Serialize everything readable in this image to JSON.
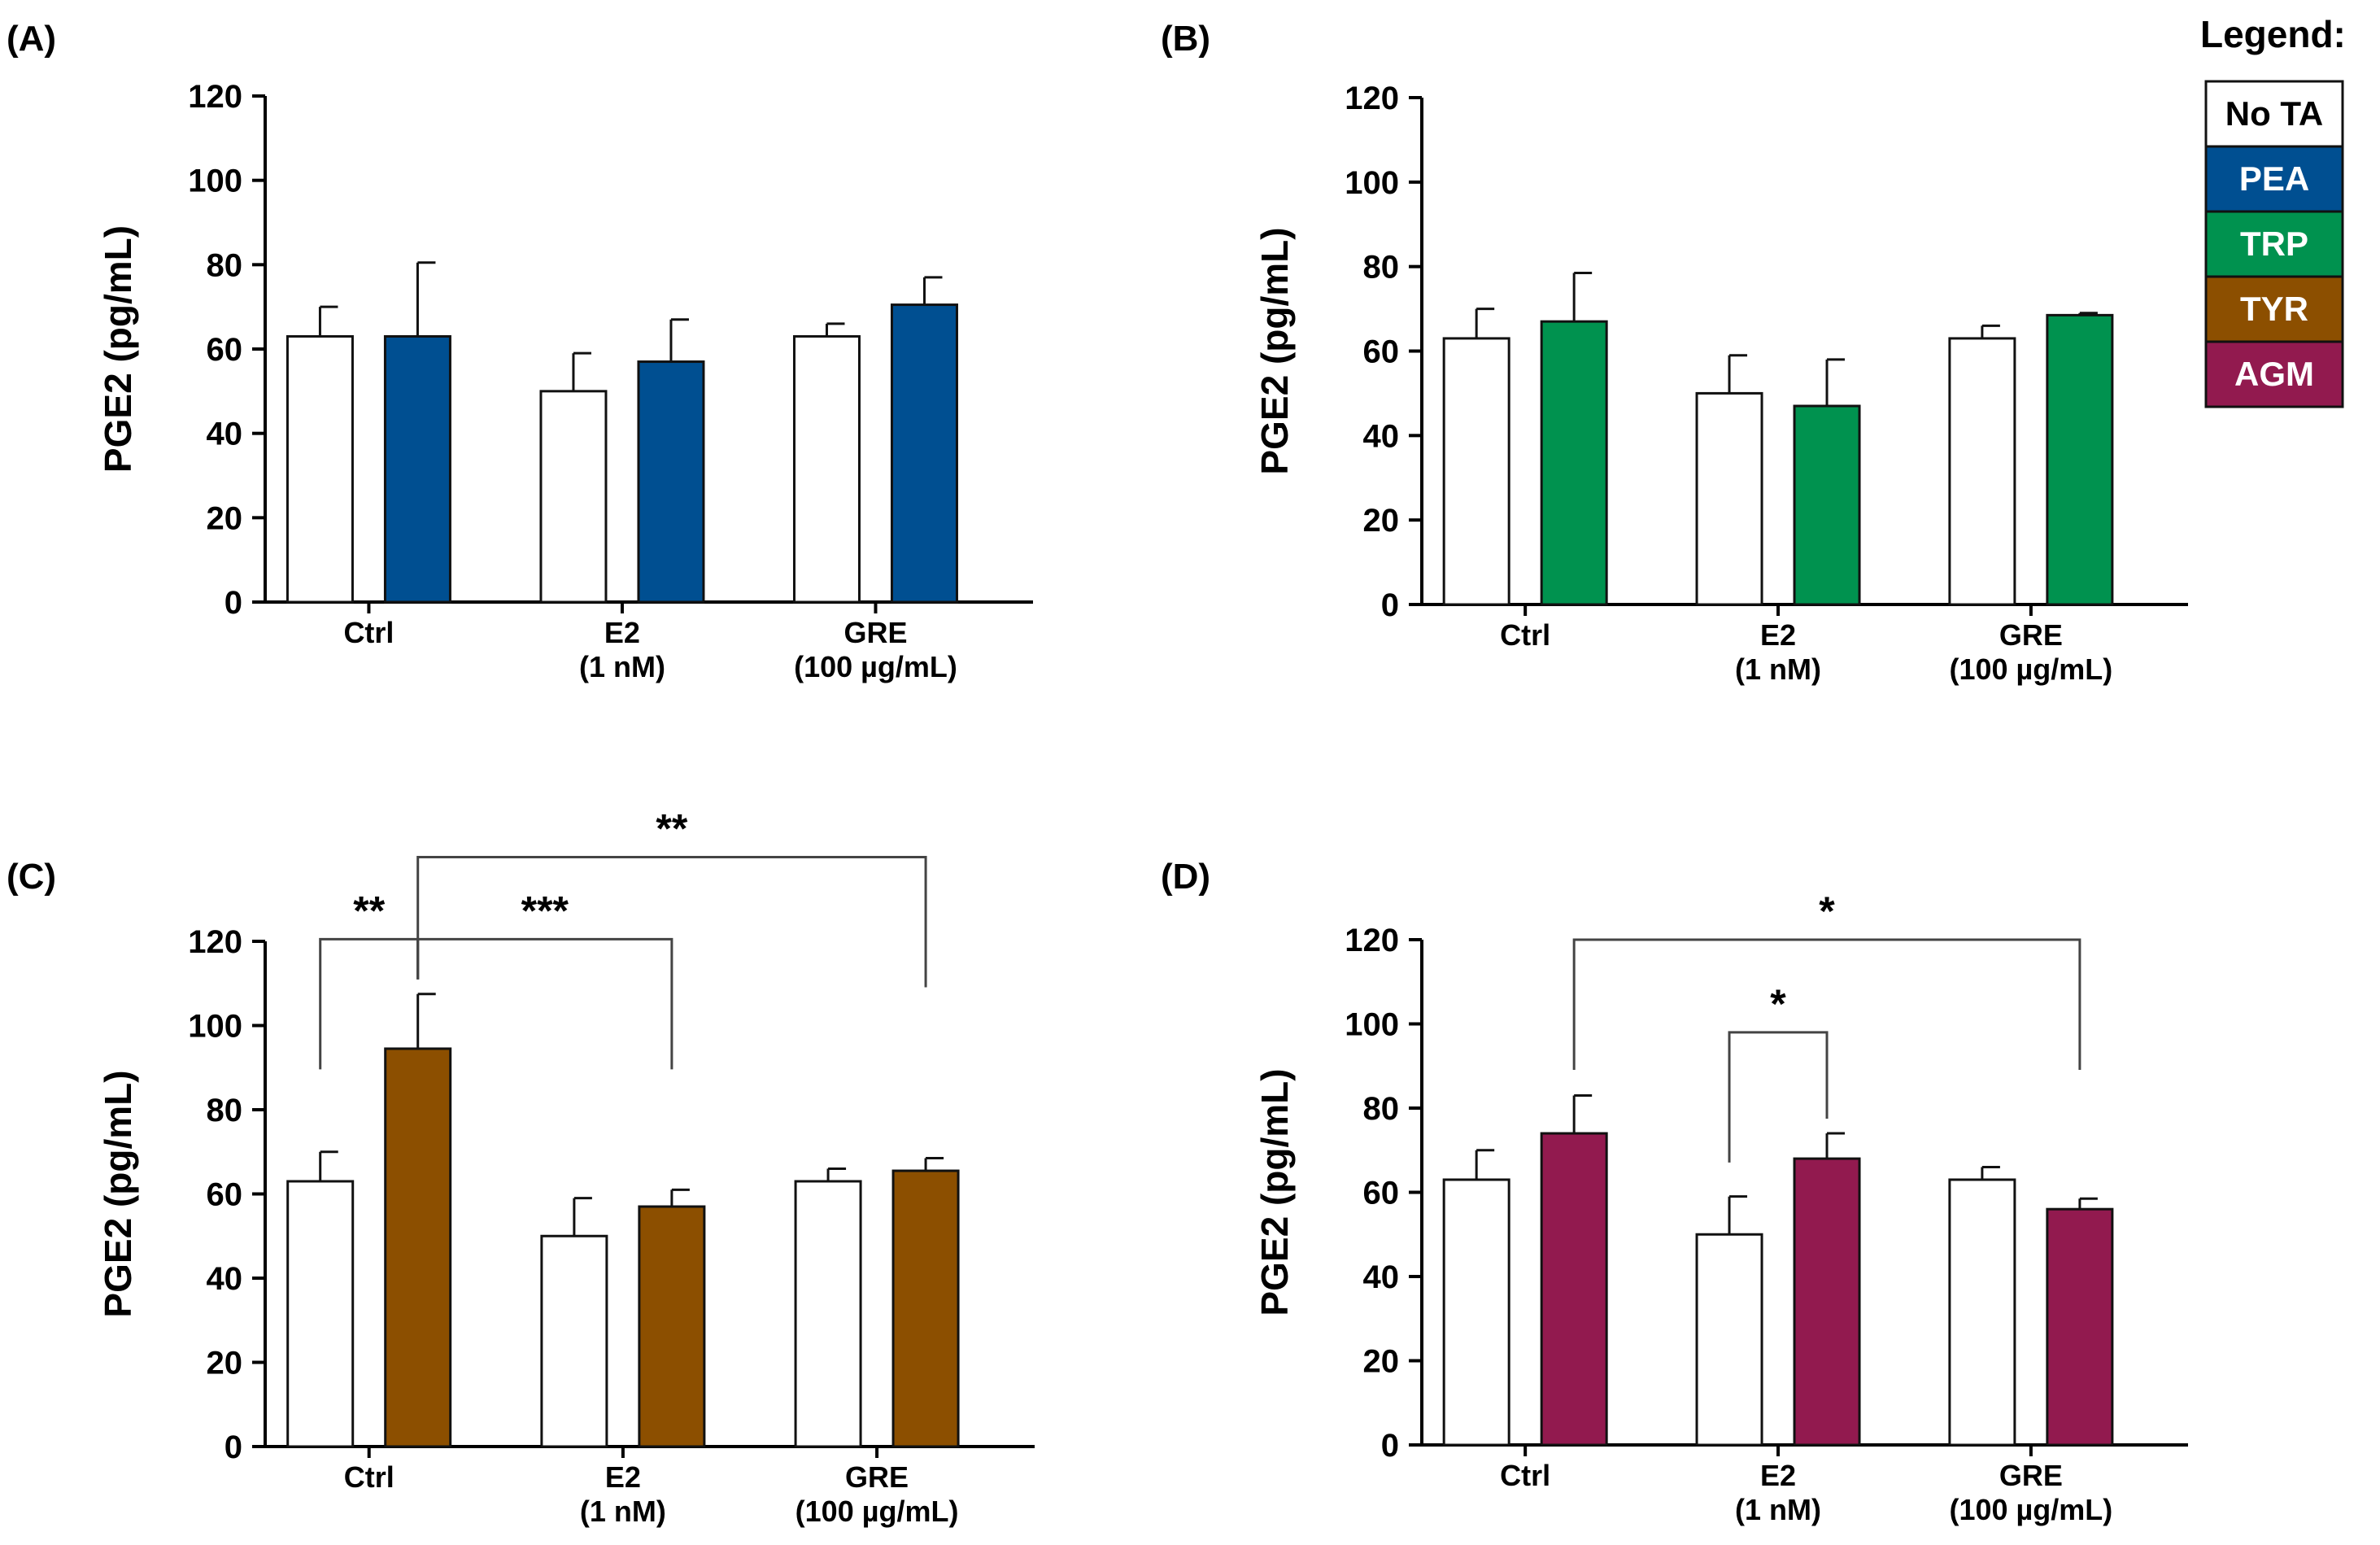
{
  "legend": {
    "title": "Legend:",
    "items": [
      {
        "label": "No TA",
        "fill": "#ffffff",
        "text_color": "#000000"
      },
      {
        "label": "PEA",
        "fill": "#004f91",
        "text_color": "#ffffff"
      },
      {
        "label": "TRP",
        "fill": "#00924f",
        "text_color": "#ffffff"
      },
      {
        "label": "TYR",
        "fill": "#8c4f00",
        "text_color": "#ffffff"
      },
      {
        "label": "AGM",
        "fill": "#921a4f",
        "text_color": "#ffffff"
      }
    ]
  },
  "chart_data": [
    {
      "panel": "(A)",
      "type": "bar",
      "ylabel": "PGE2 (pg/mL)",
      "ylim": [
        0,
        120
      ],
      "yticks": [
        0,
        20,
        40,
        60,
        80,
        100,
        120
      ],
      "categories": [
        [
          "Ctrl"
        ],
        [
          "E2",
          "(1 nM)"
        ],
        [
          "GRE",
          "(100 µg/mL)"
        ]
      ],
      "series": [
        {
          "name": "No TA",
          "color": "#ffffff",
          "values": [
            63,
            50,
            63
          ],
          "errors": [
            7,
            9,
            3
          ]
        },
        {
          "name": "PEA",
          "color": "#004f91",
          "values": [
            63,
            57,
            70.5
          ],
          "errors": [
            17.5,
            10,
            6.5
          ]
        }
      ],
      "annotations": []
    },
    {
      "panel": "(B)",
      "type": "bar",
      "ylabel": "PGE2 (pg/mL)",
      "ylim": [
        0,
        120
      ],
      "yticks": [
        0,
        20,
        40,
        60,
        80,
        100,
        120
      ],
      "categories": [
        [
          "Ctrl"
        ],
        [
          "E2",
          "(1 nM)"
        ],
        [
          "GRE",
          "(100 µg/mL)"
        ]
      ],
      "series": [
        {
          "name": "No TA",
          "color": "#ffffff",
          "values": [
            63,
            50,
            63
          ],
          "errors": [
            7,
            9,
            3
          ]
        },
        {
          "name": "TRP",
          "color": "#00924f",
          "values": [
            67,
            47,
            68.5
          ],
          "errors": [
            11.5,
            11,
            0.5
          ]
        }
      ],
      "annotations": []
    },
    {
      "panel": "(C)",
      "type": "bar",
      "ylabel": "PGE2 (pg/mL)",
      "ylim": [
        0,
        120
      ],
      "yticks": [
        0,
        20,
        40,
        60,
        80,
        100,
        120
      ],
      "categories": [
        [
          "Ctrl"
        ],
        [
          "E2",
          "(1 nM)"
        ],
        [
          "GRE",
          "(100 µg/mL)"
        ]
      ],
      "series": [
        {
          "name": "No TA",
          "color": "#ffffff",
          "values": [
            63,
            50,
            63
          ],
          "errors": [
            7,
            9,
            3
          ]
        },
        {
          "name": "TYR",
          "color": "#8c4f00",
          "values": [
            94.5,
            57,
            65.5
          ],
          "errors": [
            13,
            4,
            3
          ]
        }
      ],
      "annotations": [
        {
          "label": "**",
          "from": {
            "series": 0,
            "category": 0
          },
          "to": {
            "series": 1,
            "category": 0
          },
          "level": 120.5
        },
        {
          "label": "***",
          "from": {
            "series": 1,
            "category": 0
          },
          "to": {
            "series": 1,
            "category": 1
          },
          "level": 120.5
        },
        {
          "label": "**",
          "from": {
            "series": 1,
            "category": 0
          },
          "to": {
            "series": 1,
            "category": 2
          },
          "level": 140
        }
      ]
    },
    {
      "panel": "(D)",
      "type": "bar",
      "ylabel": "PGE2 (pg/mL)",
      "ylim": [
        0,
        120
      ],
      "yticks": [
        0,
        20,
        40,
        60,
        80,
        100,
        120
      ],
      "categories": [
        [
          "Ctrl"
        ],
        [
          "E2",
          "(1 nM)"
        ],
        [
          "GRE",
          "(100 µg/mL)"
        ]
      ],
      "series": [
        {
          "name": "No TA",
          "color": "#ffffff",
          "values": [
            63,
            50,
            63
          ],
          "errors": [
            7,
            9,
            3
          ]
        },
        {
          "name": "AGM",
          "color": "#921a4f",
          "values": [
            74,
            68,
            56
          ],
          "errors": [
            9,
            6,
            2.5
          ]
        }
      ],
      "annotations": [
        {
          "label": "*",
          "from": {
            "series": 1,
            "category": 0
          },
          "to": {
            "series": 1,
            "category": 2
          },
          "level": 120
        },
        {
          "label": "*",
          "from": {
            "series": 0,
            "category": 1
          },
          "to": {
            "series": 1,
            "category": 1
          },
          "level": 98
        }
      ]
    }
  ]
}
